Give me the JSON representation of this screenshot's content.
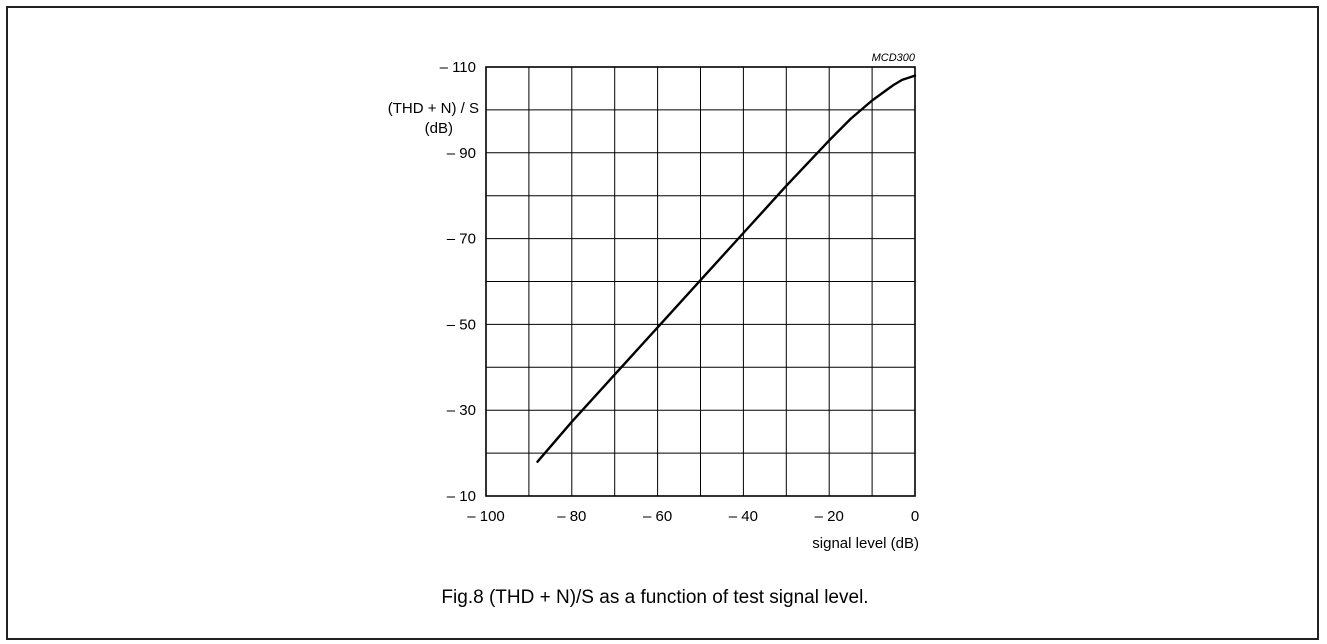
{
  "caption": "Fig.8  (THD + N)/S as a function of test signal level.",
  "chart_data": {
    "type": "line",
    "code": "MCD300",
    "ylabel_line1": "(THD + N) / S",
    "ylabel_line2": "(dB)",
    "xlabel": "signal level (dB)",
    "xlim": [
      -100,
      0
    ],
    "ylim": [
      -10,
      -110
    ],
    "grid": true,
    "x_grid": [
      -100,
      -90,
      -80,
      -70,
      -60,
      -50,
      -40,
      -30,
      -20,
      -10,
      0
    ],
    "y_grid": [
      -10,
      -20,
      -30,
      -40,
      -50,
      -60,
      -70,
      -80,
      -90,
      -100,
      -110
    ],
    "x_ticks": [
      {
        "value": -100,
        "label": "– 100"
      },
      {
        "value": -80,
        "label": "– 80"
      },
      {
        "value": -60,
        "label": "– 60"
      },
      {
        "value": -40,
        "label": "– 40"
      },
      {
        "value": -20,
        "label": "– 20"
      },
      {
        "value": 0,
        "label": "0"
      }
    ],
    "y_ticks": [
      {
        "value": -10,
        "label": "– 10"
      },
      {
        "value": -30,
        "label": "– 30"
      },
      {
        "value": -50,
        "label": "– 50"
      },
      {
        "value": -70,
        "label": "– 70"
      },
      {
        "value": -90,
        "label": "– 90"
      },
      {
        "value": -110,
        "label": "– 110"
      }
    ],
    "series": [
      {
        "color": "#000000",
        "x": [
          -88,
          -80,
          -70,
          -60,
          -50,
          -40,
          -30,
          -20,
          -15,
          -10,
          -5,
          -3,
          0
        ],
        "y": [
          -18,
          -27.3,
          -38.3,
          -49.3,
          -60.3,
          -71.3,
          -82.3,
          -92.9,
          -97.9,
          -102.2,
          -105.8,
          -107,
          -108
        ]
      }
    ]
  }
}
